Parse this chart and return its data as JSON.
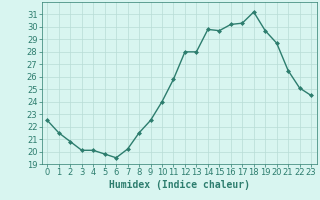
{
  "xlabel": "Humidex (Indice chaleur)",
  "x": [
    0,
    1,
    2,
    3,
    4,
    5,
    6,
    7,
    8,
    9,
    10,
    11,
    12,
    13,
    14,
    15,
    16,
    17,
    18,
    19,
    20,
    21,
    22,
    23
  ],
  "y": [
    22.5,
    21.5,
    20.8,
    20.1,
    20.1,
    19.8,
    19.5,
    20.2,
    21.5,
    22.5,
    24.0,
    25.8,
    28.0,
    28.0,
    29.8,
    29.7,
    30.2,
    30.3,
    31.2,
    29.7,
    28.7,
    26.5,
    25.1,
    24.5
  ],
  "line_color": "#2d7d6e",
  "marker": "D",
  "marker_size": 2.0,
  "bg_color": "#d8f5f0",
  "grid_color": "#b8dcd6",
  "ylim": [
    19,
    32
  ],
  "xlim": [
    -0.5,
    23.5
  ],
  "yticks": [
    19,
    20,
    21,
    22,
    23,
    24,
    25,
    26,
    27,
    28,
    29,
    30,
    31
  ],
  "xticks": [
    0,
    1,
    2,
    3,
    4,
    5,
    6,
    7,
    8,
    9,
    10,
    11,
    12,
    13,
    14,
    15,
    16,
    17,
    18,
    19,
    20,
    21,
    22,
    23
  ],
  "xlabel_fontsize": 7,
  "tick_fontsize": 6,
  "line_width": 1.0
}
